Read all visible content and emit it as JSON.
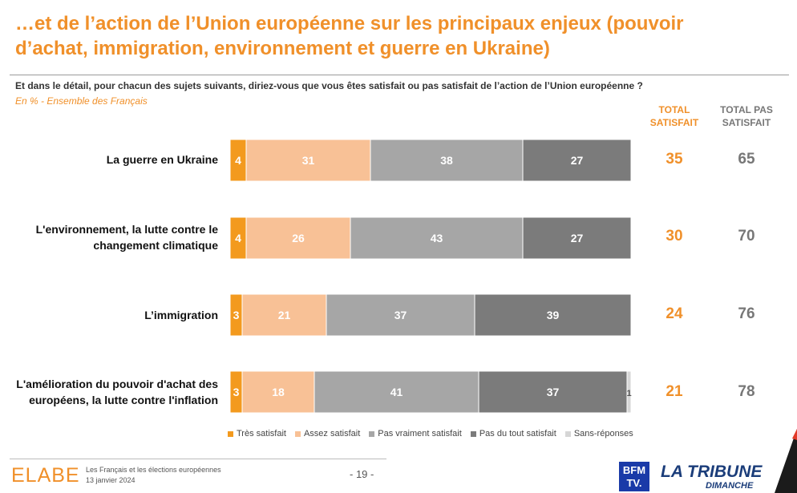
{
  "title": "…et de l’action de l’Union européenne sur les principaux enjeux (pouvoir d’achat, immigration, environnement et guerre en Ukraine)",
  "question": "Et dans le détail, pour chacun des sujets suivants, diriez-vous que vous êtes satisfait ou pas satisfait de l’action de l’Union européenne ?",
  "subtitle": "En % - Ensemble des Français",
  "columns": {
    "satisfied": "TOTAL SATISFAIT",
    "not_satisfied": "TOTAL PAS SATISFAIT"
  },
  "rows": [
    {
      "label": "La guerre en Ukraine",
      "total_satisfied": "35",
      "total_not_satisfied": "65"
    },
    {
      "label": "L'environnement, la lutte contre le changement climatique",
      "total_satisfied": "30",
      "total_not_satisfied": "70"
    },
    {
      "label": "L’immigration",
      "total_satisfied": "24",
      "total_not_satisfied": "76"
    },
    {
      "label": "L'amélioration du pouvoir d'achat des européens, la lutte contre l'inflation",
      "total_satisfied": "21",
      "total_not_satisfied": "78"
    }
  ],
  "chart_data": {
    "type": "bar",
    "orientation": "horizontal",
    "stacked": true,
    "categories": [
      "La guerre en Ukraine",
      "L'environnement, la lutte contre le changement climatique",
      "L’immigration",
      "L'amélioration du pouvoir d'achat des européens, la lutte contre l'inflation"
    ],
    "series": [
      {
        "name": "Très satisfait",
        "color": "#f39a1e",
        "values": [
          4,
          4,
          3,
          3
        ]
      },
      {
        "name": "Assez satisfait",
        "color": "#f8c196",
        "values": [
          31,
          26,
          21,
          18
        ]
      },
      {
        "name": "Pas vraiment satisfait",
        "color": "#a6a6a6",
        "values": [
          38,
          43,
          37,
          41
        ]
      },
      {
        "name": "Pas du tout satisfait",
        "color": "#7b7b7b",
        "values": [
          27,
          27,
          39,
          37
        ]
      },
      {
        "name": "Sans-réponses",
        "color": "#d6d6d6",
        "values": [
          null,
          null,
          null,
          1
        ]
      }
    ],
    "legend_position": "bottom"
  },
  "footer": {
    "logo": "ELABE",
    "study": "Les Français et les élections européennes",
    "date": "13 janvier 2024",
    "page": "- 19 -",
    "logo_bfm": "BFM TV.",
    "logo_tribune": "LA TRIBUNE",
    "logo_tribune_sub": "DIMANCHE"
  }
}
